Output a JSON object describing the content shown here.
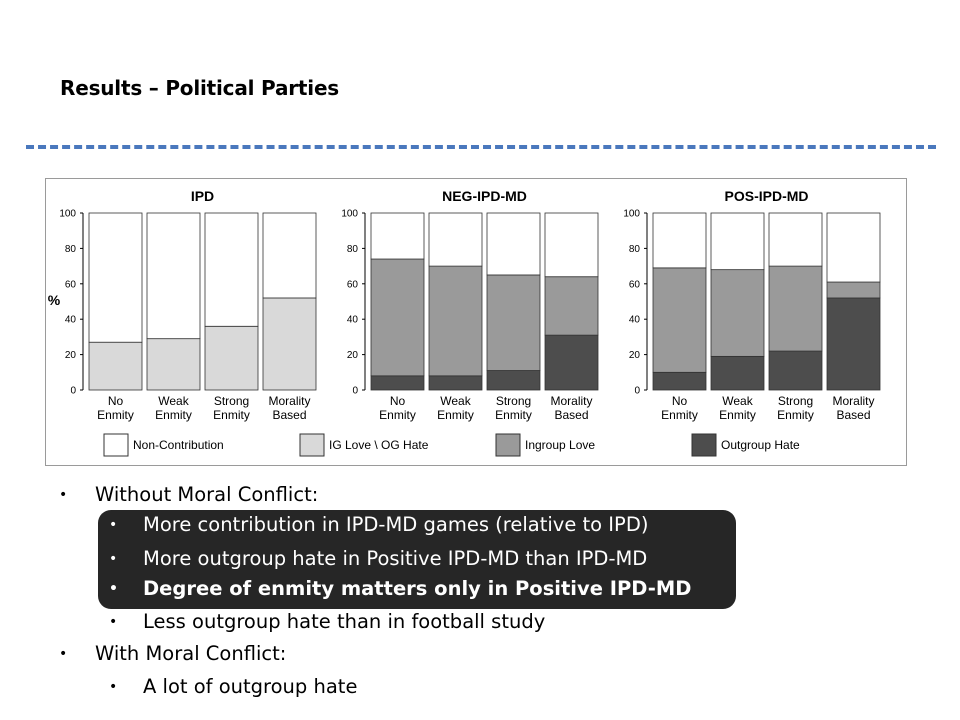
{
  "slide": {
    "title": "Results – Political Parties"
  },
  "chart_data": {
    "type": "bar",
    "stacked": true,
    "ylabel": "%",
    "ylim": [
      0,
      100
    ],
    "yticks": [
      0,
      20,
      40,
      60,
      80,
      100
    ],
    "categories": [
      "No\nEnmity",
      "Weak\nEnmity",
      "Strong\nEnmity",
      "Morality\nBased"
    ],
    "legend": {
      "placement": "bottom",
      "entries": [
        {
          "label": "Non-Contribution",
          "color": "#ffffff"
        },
        {
          "label": "IG Love \\ OG Hate",
          "color": "#d9d9d9"
        },
        {
          "label": "Ingroup Love",
          "color": "#9a9a9a"
        },
        {
          "label": "Outgroup Hate",
          "color": "#4d4d4d"
        }
      ]
    },
    "panels": [
      {
        "title": "IPD",
        "series": [
          {
            "name": "IG Love \\ OG Hate",
            "values": [
              27,
              29,
              36,
              52
            ]
          },
          {
            "name": "Non-Contribution",
            "values": [
              73,
              71,
              64,
              48
            ]
          }
        ]
      },
      {
        "title": "NEG-IPD-MD",
        "series": [
          {
            "name": "Outgroup Hate",
            "values": [
              8,
              8,
              11,
              31
            ]
          },
          {
            "name": "Ingroup Love",
            "values": [
              66,
              62,
              54,
              33
            ]
          },
          {
            "name": "Non-Contribution",
            "values": [
              26,
              30,
              35,
              36
            ]
          }
        ]
      },
      {
        "title": "POS-IPD-MD",
        "series": [
          {
            "name": "Outgroup Hate",
            "values": [
              10,
              19,
              22,
              52
            ]
          },
          {
            "name": "Ingroup Love",
            "values": [
              59,
              49,
              48,
              9
            ]
          },
          {
            "name": "Non-Contribution",
            "values": [
              31,
              32,
              30,
              39
            ]
          }
        ]
      }
    ]
  },
  "bullets": {
    "b1": "Without Moral Conflict:",
    "b1a": "More contribution in IPD-MD games (relative to IPD)",
    "b1b": "More outgroup hate in Positive IPD-MD than IPD-MD",
    "b1c": "Degree of enmity matters only in Positive IPD-MD",
    "b1d": "Less outgroup hate than in football study",
    "b2": "With Moral Conflict:",
    "b2a": "A lot of outgroup hate",
    "marker": "•"
  },
  "colors": {
    "rule": "#4a78bd",
    "highlight": "#262626"
  }
}
